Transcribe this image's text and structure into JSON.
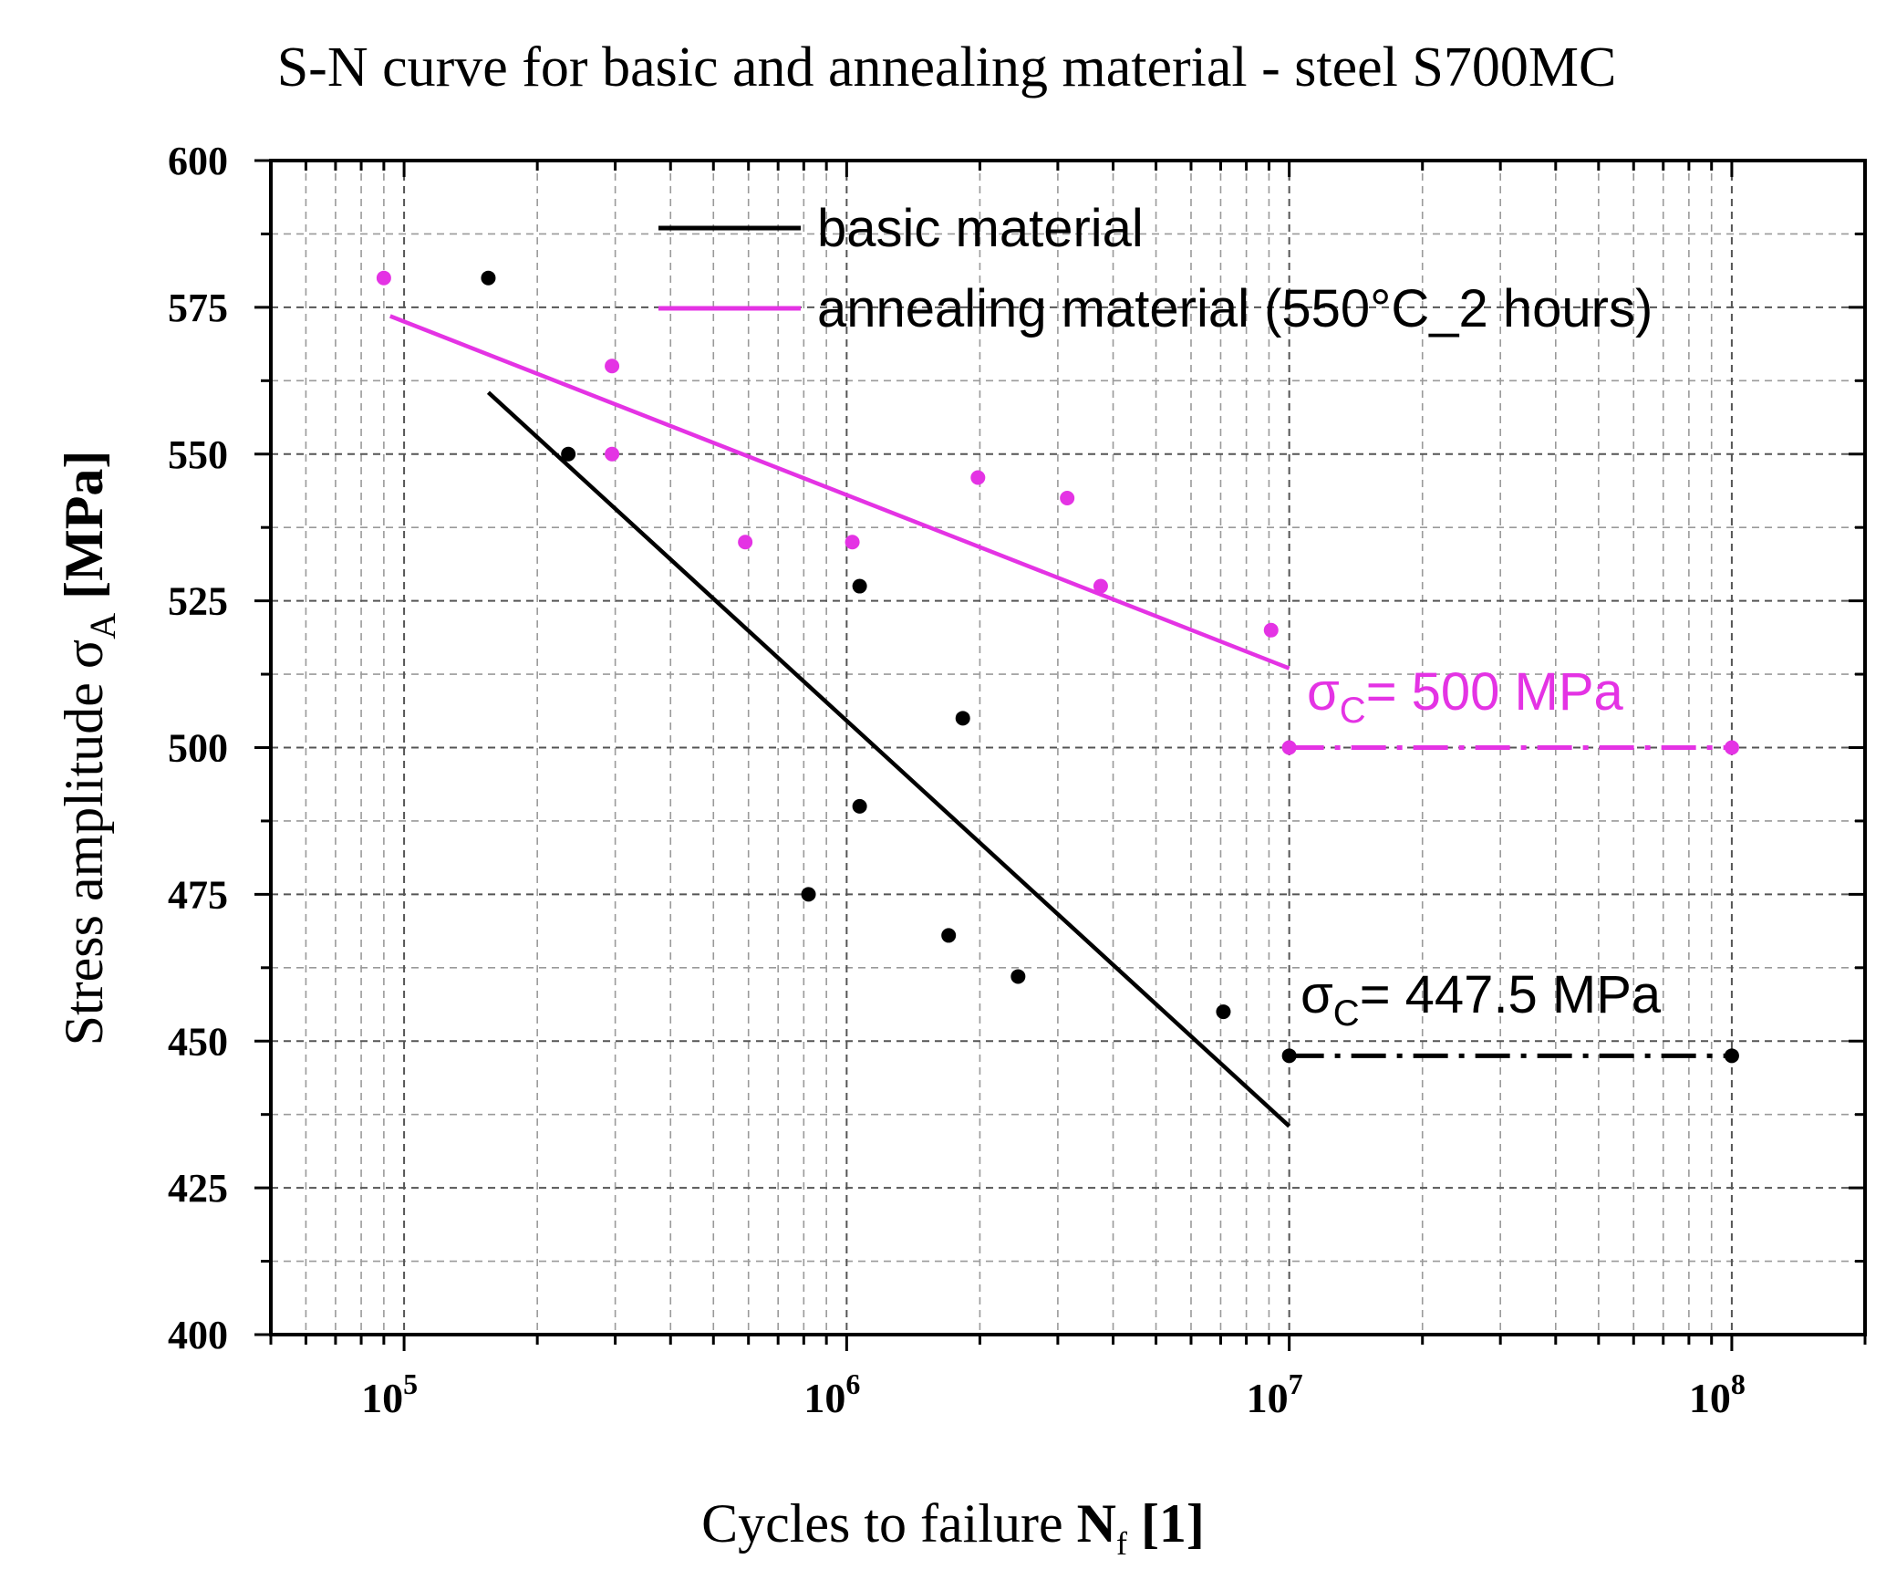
{
  "chart_data": {
    "type": "scatter",
    "title": "S-N curve for basic and annealing material - steel S700MC",
    "xlabel": {
      "prefix": "Cycles to failure ",
      "symbol": "N",
      "sub": "f",
      "unit": " [1]"
    },
    "ylabel": {
      "prefix": "Stress amplitude ",
      "symbol": "σ",
      "sub": "A",
      "unit": " [MPa]"
    },
    "x_scale": "log",
    "xlim": [
      50000,
      200000000
    ],
    "ylim": [
      400,
      600
    ],
    "y_ticks": [
      400,
      425,
      450,
      475,
      500,
      525,
      550,
      575,
      600
    ],
    "x_ticks": [
      {
        "value": 100000,
        "base": "10",
        "exp": "5"
      },
      {
        "value": 1000000,
        "base": "10",
        "exp": "6"
      },
      {
        "value": 10000000,
        "base": "10",
        "exp": "7"
      },
      {
        "value": 100000000,
        "base": "10",
        "exp": "8"
      }
    ],
    "grid": true,
    "legend_position": "top",
    "series": [
      {
        "name": "basic material",
        "color": "#000000",
        "points": [
          [
            155000,
            580
          ],
          [
            235000,
            550
          ],
          [
            1070000,
            527.5
          ],
          [
            1830000,
            505
          ],
          [
            1070000,
            490
          ],
          [
            820000,
            475
          ],
          [
            1700000,
            468
          ],
          [
            2440000,
            461
          ],
          [
            7100000,
            455
          ]
        ],
        "fit_line": [
          [
            155000,
            560.5
          ],
          [
            10000000,
            435.5
          ]
        ],
        "endurance_limit": {
          "value": 447.5,
          "x_range": [
            10000000,
            100000000
          ],
          "label_symbol": "σ",
          "label_sub": "C",
          "label_text": "= 447.5 MPa"
        }
      },
      {
        "name": "annealing material (550°C_2 hours)",
        "color": "#e433e4",
        "points": [
          [
            90000,
            580
          ],
          [
            295000,
            565
          ],
          [
            295000,
            550
          ],
          [
            590000,
            535
          ],
          [
            1030000,
            535
          ],
          [
            1980000,
            546
          ],
          [
            3150000,
            542.5
          ],
          [
            3750000,
            527.5
          ],
          [
            9100000,
            520
          ]
        ],
        "fit_line": [
          [
            93000,
            573.5
          ],
          [
            10000000,
            513.5
          ]
        ],
        "endurance_limit": {
          "value": 500,
          "x_range": [
            10000000,
            100000000
          ],
          "label_symbol": "σ",
          "label_sub": "C",
          "label_text": "= 500 MPa"
        }
      }
    ]
  }
}
